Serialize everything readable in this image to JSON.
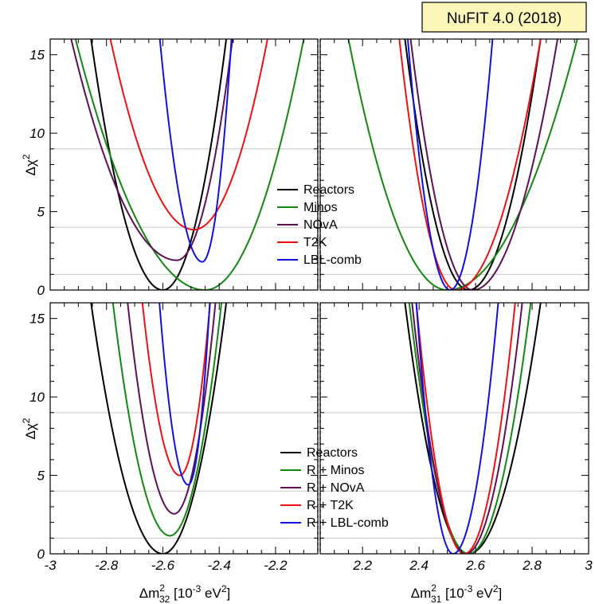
{
  "title_box": {
    "label": "NuFIT 4.0 (2018)",
    "fill": "#fdf6b9"
  },
  "axis_labels": {
    "ylabel_base": "Δχ",
    "ylabel_sup": "2",
    "xlabel_left": {
      "base": "Δm",
      "sup": "2",
      "sub": "32",
      "rest": " [10",
      "exp": "-3",
      "unit": " eV",
      "unit_sup": "2",
      "close": "]"
    },
    "xlabel_right": {
      "base": "Δm",
      "sup": "2",
      "sub": "31",
      "rest": " [10",
      "exp": "-3",
      "unit": " eV",
      "unit_sup": "2",
      "close": "]"
    }
  },
  "colors": {
    "Reactors": "#000000",
    "Minos": "#118811",
    "NOvA": "#5e0f55",
    "T2K": "#ee1111",
    "LBL-comb": "#1111dd"
  },
  "legends": {
    "top": [
      "Reactors",
      "Minos",
      "NOvA",
      "T2K",
      "LBL-comb"
    ],
    "bottom": [
      "Reactors",
      "R + Minos",
      "R + NOvA",
      "R + T2K",
      "R + LBL-comb"
    ]
  },
  "chart_data": [
    {
      "panel": "top",
      "type": "line",
      "ylabel": "Δχ²",
      "ylim": [
        0,
        16
      ],
      "yticks": [
        0,
        5,
        10,
        15
      ],
      "reference_lines": [
        1,
        4,
        9
      ],
      "left_xlim": [
        -3.0,
        -2.05
      ],
      "right_xlim": [
        2.05,
        3.0
      ],
      "left_xticks": [
        -3,
        -2.8,
        -2.6,
        -2.4,
        -2.2
      ],
      "right_xticks": [
        2.2,
        2.4,
        2.6,
        2.8,
        3
      ],
      "legend_position": "center",
      "series": [
        {
          "name": "Reactors",
          "color_key": "Reactors",
          "left": {
            "min_x": -2.6,
            "min_y": 0.0,
            "hw_l": 0.255,
            "hw_r": 0.225
          },
          "right": {
            "min_x": 2.575,
            "min_y": 0.0,
            "hw_l": 0.225,
            "hw_r": 0.255
          }
        },
        {
          "name": "Minos",
          "color_key": "Minos",
          "left": {
            "min_x": -2.45,
            "min_y": 0.0,
            "hw_l": 0.46,
            "hw_r": 0.35
          },
          "right": {
            "min_x": 2.5,
            "min_y": 0.0,
            "hw_l": 0.35,
            "hw_r": 0.46
          }
        },
        {
          "name": "NOvA",
          "color_key": "NOvA",
          "left": {
            "min_x": -2.55,
            "min_y": 1.9,
            "hw_l": 0.4,
            "hw_r": 0.21
          },
          "right": {
            "min_x": 2.59,
            "min_y": 0.0,
            "hw_l": 0.22,
            "hw_r": 0.3
          }
        },
        {
          "name": "T2K",
          "color_key": "T2K",
          "left": {
            "min_x": -2.49,
            "min_y": 3.85,
            "hw_l": 0.34,
            "hw_r": 0.3
          },
          "right": {
            "min_x": 2.53,
            "min_y": 0.0,
            "hw_l": 0.2,
            "hw_r": 0.3
          }
        },
        {
          "name": "LBL-comb",
          "color_key": "LBL-comb",
          "left": {
            "min_x": -2.46,
            "min_y": 1.8,
            "hw_l": 0.16,
            "hw_r": 0.11
          },
          "right": {
            "min_x": 2.51,
            "min_y": 0.0,
            "hw_l": 0.15,
            "hw_r": 0.15
          }
        }
      ]
    },
    {
      "panel": "bottom",
      "type": "line",
      "ylabel": "Δχ²",
      "ylim": [
        0,
        16
      ],
      "yticks": [
        0,
        5,
        10,
        15
      ],
      "reference_lines": [
        1,
        4,
        9
      ],
      "left_xlim": [
        -3.0,
        -2.05
      ],
      "right_xlim": [
        2.05,
        3.0
      ],
      "left_xticks": [
        -3,
        -2.8,
        -2.6,
        -2.4,
        -2.2
      ],
      "right_xticks": [
        2.2,
        2.4,
        2.6,
        2.8,
        3
      ],
      "legend_position": "center-right",
      "series": [
        {
          "name": "Reactors",
          "color_key": "Reactors",
          "left": {
            "min_x": -2.6,
            "min_y": 0.0,
            "hw_l": 0.255,
            "hw_r": 0.225
          },
          "right": {
            "min_x": 2.575,
            "min_y": 0.0,
            "hw_l": 0.225,
            "hw_r": 0.255
          }
        },
        {
          "name": "R + Minos",
          "color_key": "Minos",
          "left": {
            "min_x": -2.575,
            "min_y": 1.15,
            "hw_l": 0.21,
            "hw_r": 0.19
          },
          "right": {
            "min_x": 2.575,
            "min_y": 0.0,
            "hw_l": 0.21,
            "hw_r": 0.22
          }
        },
        {
          "name": "R + NOvA",
          "color_key": "NOvA",
          "left": {
            "min_x": -2.56,
            "min_y": 2.55,
            "hw_l": 0.18,
            "hw_r": 0.16
          },
          "right": {
            "min_x": 2.565,
            "min_y": 0.0,
            "hw_l": 0.19,
            "hw_r": 0.2
          }
        },
        {
          "name": "R + T2K",
          "color_key": "T2K",
          "left": {
            "min_x": -2.54,
            "min_y": 5.0,
            "hw_l": 0.16,
            "hw_r": 0.13
          },
          "right": {
            "min_x": 2.56,
            "min_y": 0.0,
            "hw_l": 0.17,
            "hw_r": 0.18
          }
        },
        {
          "name": "R + LBL-comb",
          "color_key": "LBL-comb",
          "left": {
            "min_x": -2.51,
            "min_y": 4.4,
            "hw_l": 0.12,
            "hw_r": 0.09
          },
          "right": {
            "min_x": 2.52,
            "min_y": 0.0,
            "hw_l": 0.13,
            "hw_r": 0.16
          }
        }
      ]
    }
  ]
}
